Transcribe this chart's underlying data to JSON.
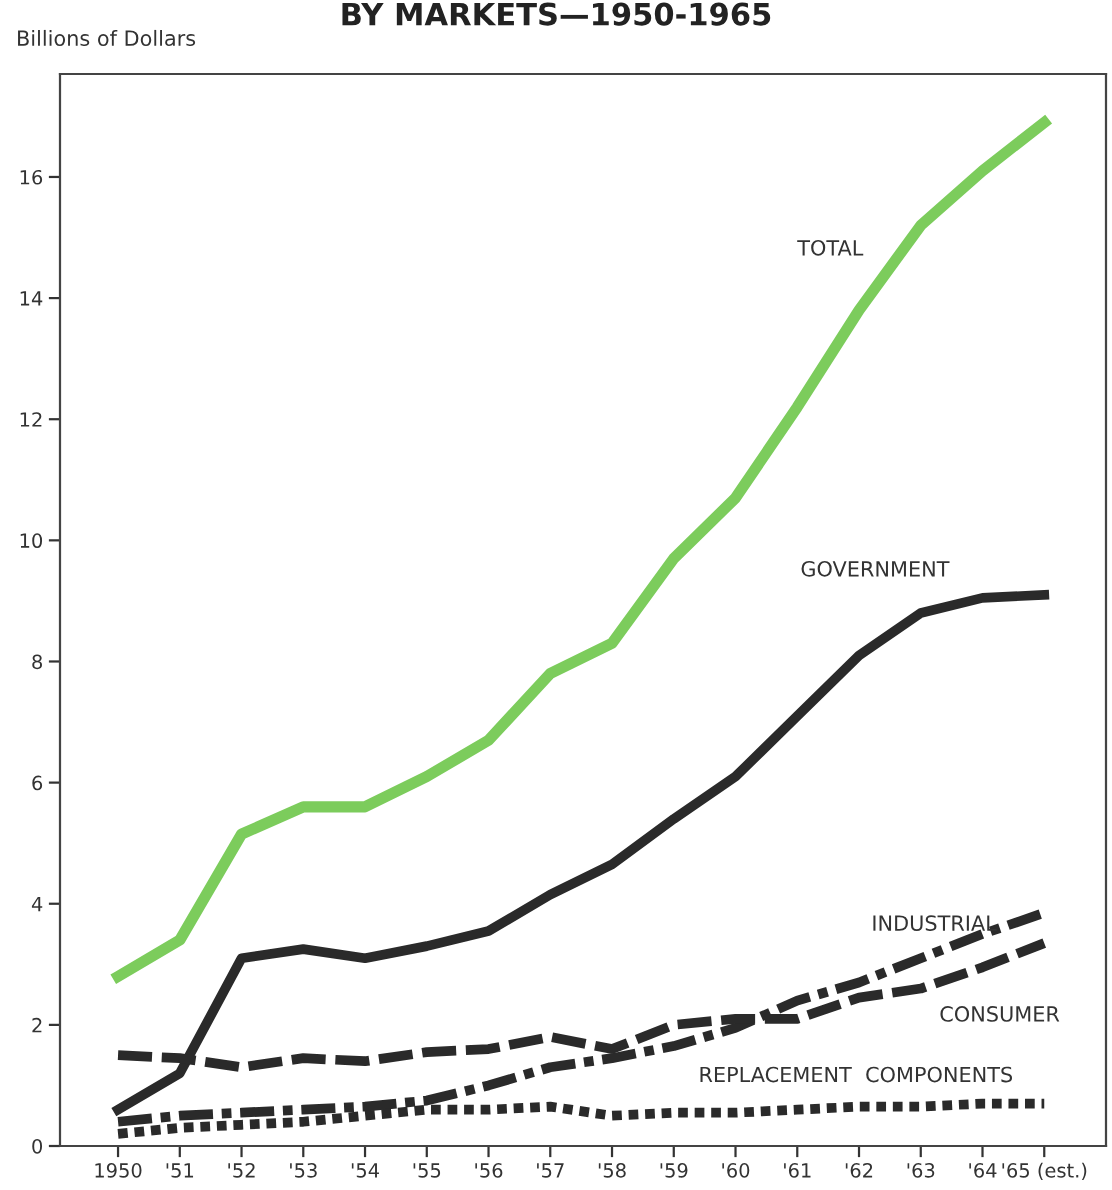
{
  "chart_data": {
    "type": "line",
    "title": "BY MARKETS—1950-1965",
    "ylabel": "Billions of Dollars",
    "categories": [
      "1950",
      "'51",
      "'52",
      "'53",
      "'54",
      "'55",
      "'56",
      "'57",
      "'58",
      "'59",
      "'60",
      "'61",
      "'62",
      "'63",
      "'64",
      "'65 (est.)"
    ],
    "series": [
      {
        "name": "TOTAL",
        "color": "#7ccc5c",
        "line_style": "solid",
        "values": [
          2.8,
          3.4,
          5.15,
          5.6,
          5.6,
          6.1,
          6.7,
          7.8,
          8.3,
          9.7,
          10.7,
          12.2,
          13.8,
          15.2,
          16.1,
          16.9
        ]
      },
      {
        "name": "GOVERNMENT",
        "color": "#2a2a2a",
        "line_style": "solid",
        "values": [
          0.6,
          1.2,
          3.1,
          3.25,
          3.1,
          3.3,
          3.55,
          4.15,
          4.65,
          5.4,
          6.1,
          7.1,
          8.1,
          8.8,
          9.05,
          9.1
        ]
      },
      {
        "name": "INDUSTRIAL",
        "color": "#2a2a2a",
        "line_style": "dashdot",
        "values": [
          0.4,
          0.5,
          0.55,
          0.6,
          0.65,
          0.75,
          1.0,
          1.3,
          1.45,
          1.65,
          1.95,
          2.4,
          2.7,
          3.1,
          3.5,
          3.85
        ]
      },
      {
        "name": "CONSUMER",
        "color": "#2a2a2a",
        "line_style": "dashed",
        "values": [
          1.5,
          1.45,
          1.3,
          1.45,
          1.4,
          1.55,
          1.6,
          1.8,
          1.6,
          2.0,
          2.1,
          2.1,
          2.45,
          2.6,
          2.95,
          3.35
        ]
      },
      {
        "name": "REPLACEMENT  COMPONENTS",
        "color": "#2a2a2a",
        "line_style": "dotted",
        "values": [
          0.2,
          0.3,
          0.35,
          0.4,
          0.5,
          0.6,
          0.6,
          0.65,
          0.5,
          0.55,
          0.55,
          0.6,
          0.65,
          0.65,
          0.7,
          0.7
        ]
      }
    ],
    "ylim": [
      0,
      17.7
    ],
    "yticks": [
      0,
      2,
      4,
      6,
      8,
      10,
      12,
      14,
      16
    ],
    "grid": false,
    "legend": false,
    "marker": "none"
  }
}
